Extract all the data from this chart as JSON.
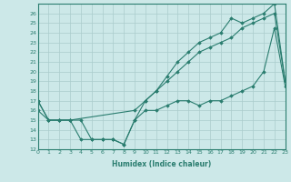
{
  "line1": {
    "x": [
      0,
      1,
      2,
      3,
      4,
      5,
      6,
      7,
      8,
      9,
      10,
      11,
      12,
      13,
      14,
      15,
      16,
      17,
      18,
      19,
      20,
      21,
      22,
      23
    ],
    "y": [
      17,
      15,
      15,
      15,
      13,
      13,
      13,
      13,
      12.5,
      15,
      17,
      18,
      19,
      20,
      21,
      22,
      22.5,
      23,
      23.5,
      24.5,
      25,
      25.5,
      26,
      19
    ],
    "color": "#2a7d6f",
    "marker": "D",
    "markersize": 1.8,
    "linewidth": 0.8
  },
  "line2": {
    "x": [
      0,
      1,
      2,
      3,
      9,
      10,
      11,
      12,
      13,
      14,
      15,
      16,
      17,
      18,
      19,
      20,
      21,
      22,
      23
    ],
    "y": [
      17,
      15,
      15,
      15,
      16,
      17,
      18,
      19.5,
      21,
      22,
      23,
      23.5,
      24,
      25.5,
      25,
      25.5,
      26,
      27,
      19
    ],
    "color": "#2a7d6f",
    "marker": "D",
    "markersize": 1.8,
    "linewidth": 0.8
  },
  "line3": {
    "x": [
      0,
      1,
      2,
      3,
      4,
      5,
      6,
      7,
      8,
      9,
      10,
      11,
      12,
      13,
      14,
      15,
      16,
      17,
      18,
      19,
      20,
      21,
      22,
      23
    ],
    "y": [
      16,
      15,
      15,
      15,
      15,
      13,
      13,
      13,
      12.5,
      15,
      16,
      16,
      16.5,
      17,
      17,
      16.5,
      17,
      17,
      17.5,
      18,
      18.5,
      20,
      24.5,
      18.5
    ],
    "color": "#2a7d6f",
    "marker": "D",
    "markersize": 1.8,
    "linewidth": 0.8
  },
  "xlabel": "Humidex (Indice chaleur)",
  "xlim": [
    0,
    23
  ],
  "ylim": [
    12,
    27
  ],
  "yticks": [
    12,
    13,
    14,
    15,
    16,
    17,
    18,
    19,
    20,
    21,
    22,
    23,
    24,
    25,
    26
  ],
  "xticks": [
    0,
    1,
    2,
    3,
    4,
    5,
    6,
    7,
    8,
    9,
    10,
    11,
    12,
    13,
    14,
    15,
    16,
    17,
    18,
    19,
    20,
    21,
    22,
    23
  ],
  "xtick_labels": [
    "0",
    "1",
    "2",
    "3",
    "4",
    "5",
    "6",
    "7",
    "8",
    "9",
    "10",
    "11",
    "12",
    "13",
    "14",
    "15",
    "16",
    "17",
    "18",
    "19",
    "20",
    "21",
    "22",
    "23"
  ],
  "background_color": "#cce8e8",
  "grid_color": "#aacccc",
  "tick_color": "#2a7d6f",
  "label_color": "#2a7d6f"
}
